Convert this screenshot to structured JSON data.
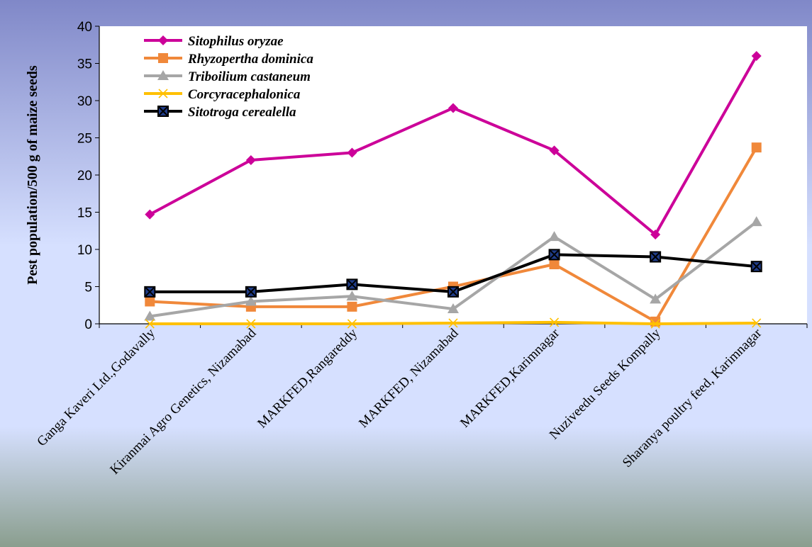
{
  "chart_data": {
    "type": "line",
    "title": "",
    "xlabel": "",
    "ylabel": "Pest population/500 g of maize seeds",
    "ylim": [
      0,
      40
    ],
    "yticks": [
      0,
      5,
      10,
      15,
      20,
      25,
      30,
      35,
      40
    ],
    "grid": false,
    "legend_position": "top-left",
    "categories": [
      "Ganga Kaveri Ltd.,Godavally",
      "Kiranmai Agro Genetics, Nizamabad",
      "MARKFED,Rangareddy",
      "MARKFED, Nizamabad",
      "MARKFED,Karimnagar",
      "Nuziveedu Seeds Kompally",
      "Sharanya poultry feed, Karimnagar"
    ],
    "series": [
      {
        "name": "Sitophilus oryzae",
        "color": "#cc0099",
        "marker": "diamond",
        "values": [
          14.7,
          22.0,
          23.0,
          29.0,
          23.3,
          12.0,
          36.0
        ]
      },
      {
        "name": "Rhyzopertha dominica",
        "color": "#f0883a",
        "marker": "square",
        "values": [
          3.0,
          2.3,
          2.3,
          5.0,
          8.0,
          0.3,
          23.7
        ]
      },
      {
        "name": "Triboilium  castaneum",
        "color": "#a6a6a6",
        "marker": "triangle",
        "values": [
          1.0,
          3.0,
          3.7,
          2.0,
          11.7,
          3.3,
          13.7
        ]
      },
      {
        "name": "Corcyracephalonica",
        "color": "#ffc000",
        "marker": "x",
        "values": [
          0.0,
          0.0,
          0.0,
          0.1,
          0.2,
          0.0,
          0.1
        ]
      },
      {
        "name": "Sitotroga cerealella",
        "color": "#000000",
        "marker": "xsquare",
        "values": [
          4.3,
          4.3,
          5.3,
          4.3,
          9.3,
          9.0,
          7.7
        ]
      }
    ]
  },
  "colors": {
    "background_top": "#8088c8",
    "background_mid": "#d6e0ff",
    "background_bottom": "#8a9e8e",
    "plot_area": "#ffffff",
    "xsquare_fill": "#1f3c88"
  }
}
